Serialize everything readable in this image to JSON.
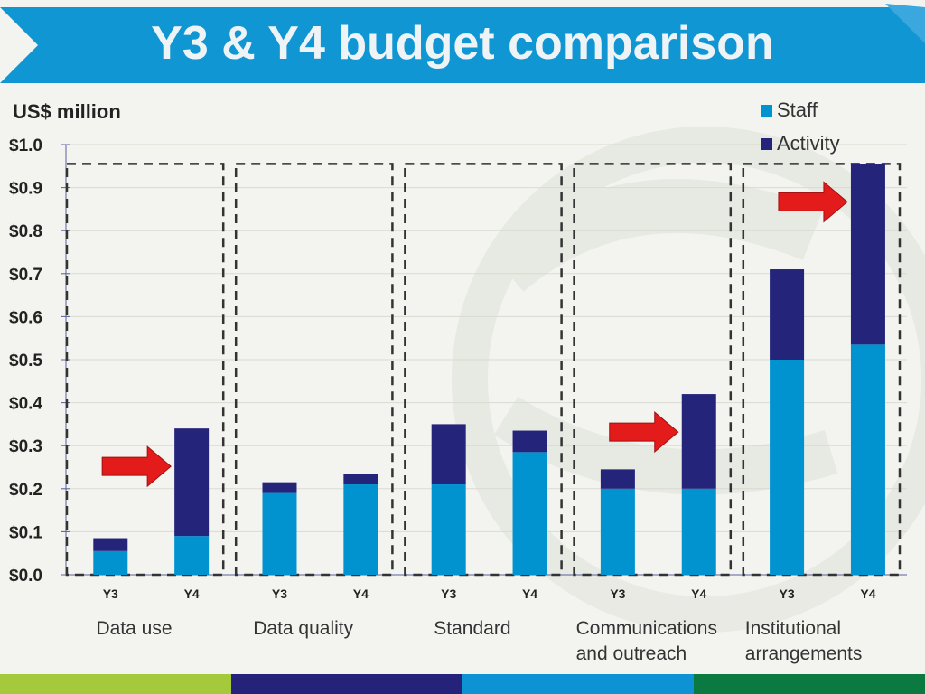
{
  "slide": {
    "title": "Y3 & Y4 budget comparison",
    "colors": {
      "banner": "#1196d4",
      "banner_light": "#3aa8de",
      "footer": [
        "#a4c93a",
        "#252379",
        "#0d93d3",
        "#0a7a40"
      ],
      "arrow": "#e31b1b"
    }
  },
  "chart_data": {
    "type": "bar",
    "stacked": true,
    "unit_label": "US$ million",
    "xlabel": "",
    "ylabel": "US$ million",
    "ylim": [
      0,
      1.0
    ],
    "yticks": [
      "$0.0",
      "$0.1",
      "$0.2",
      "$0.3",
      "$0.4",
      "$0.5",
      "$0.6",
      "$0.7",
      "$0.8",
      "$0.9",
      "$1.0"
    ],
    "grid": true,
    "legend_position": "top-right",
    "groups": [
      "Data use",
      "Data quality",
      "Standard",
      "Communications and outreach",
      "Institutional arrangements"
    ],
    "categories": [
      "Y3",
      "Y4",
      "Y3",
      "Y4",
      "Y3",
      "Y4",
      "Y3",
      "Y4",
      "Y3",
      "Y4"
    ],
    "series": [
      {
        "name": "Staff",
        "color": "#0093d0",
        "values": [
          0.055,
          0.09,
          0.19,
          0.21,
          0.21,
          0.285,
          0.2,
          0.2,
          0.5,
          0.535
        ]
      },
      {
        "name": "Activity",
        "color": "#25247b",
        "values": [
          0.03,
          0.25,
          0.025,
          0.025,
          0.14,
          0.05,
          0.045,
          0.22,
          0.21,
          0.42
        ]
      }
    ],
    "highlighted_bars": [
      1,
      7,
      9
    ]
  }
}
